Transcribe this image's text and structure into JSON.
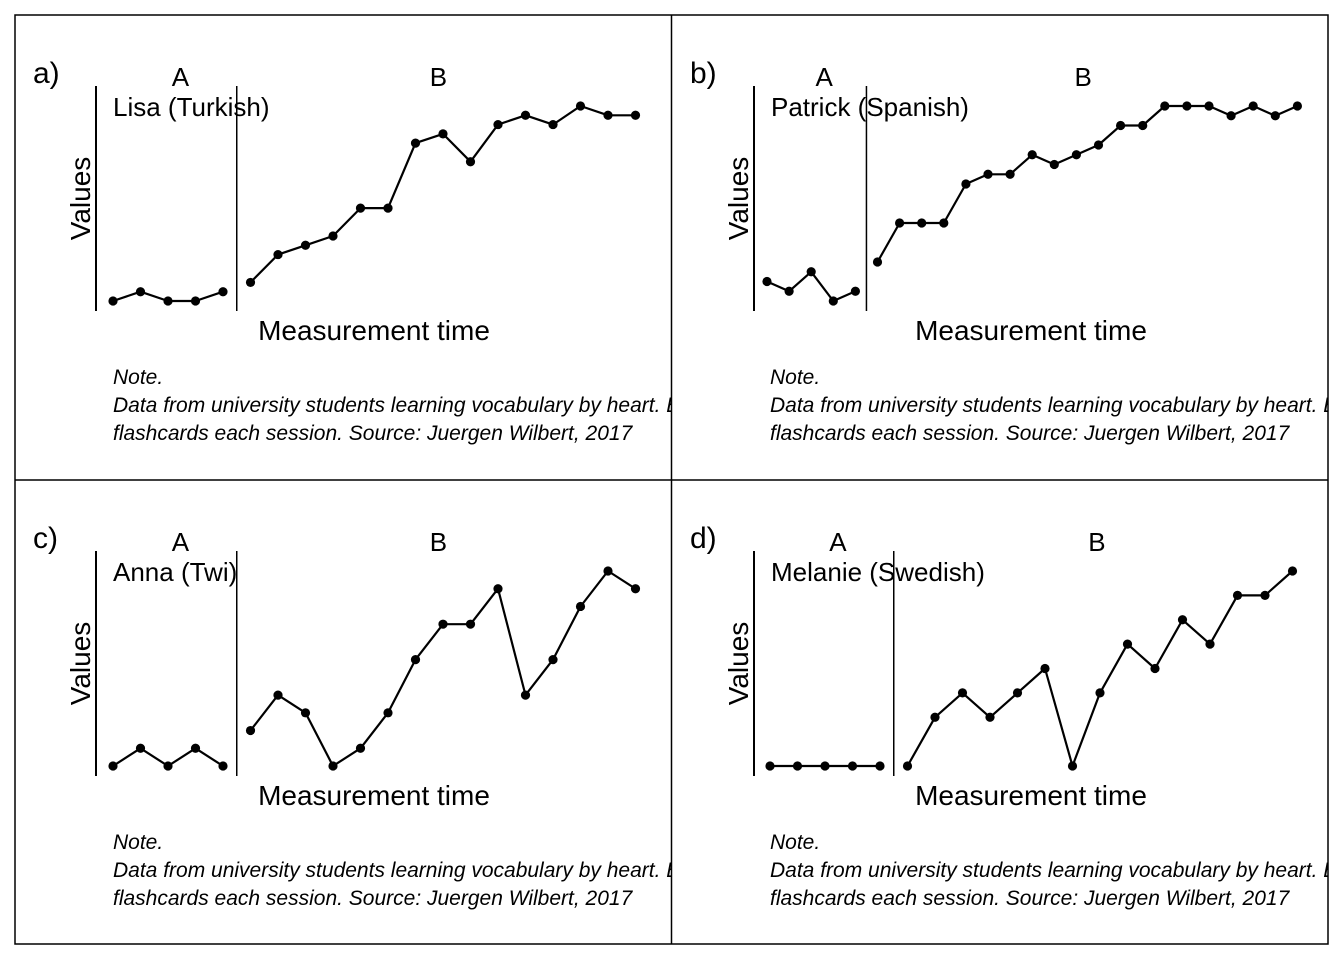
{
  "figure": {
    "note_label": "Note.",
    "note_line1": "Data from university students learning vocabulary by heart. Each session with ten",
    "note_line2": "flashcards each session. Source: Juergen Wilbert, 2017"
  },
  "chart_data": [
    {
      "type": "line",
      "panel_label": "a)",
      "title": "Lisa (Turkish)",
      "xlabel": "Measurement time",
      "ylabel": "Values",
      "phases": [
        {
          "label": "A",
          "values": [
            0,
            1,
            0,
            0,
            1
          ]
        },
        {
          "label": "B",
          "values": [
            2,
            5,
            6,
            7,
            10,
            10,
            17,
            18,
            15,
            19,
            20,
            19,
            21,
            20,
            20
          ]
        }
      ],
      "ylim": [
        0,
        21
      ]
    },
    {
      "type": "line",
      "panel_label": "b)",
      "title": "Patrick (Spanish)",
      "xlabel": "Measurement time",
      "ylabel": "Values",
      "phases": [
        {
          "label": "A",
          "values": [
            2,
            1,
            3,
            0,
            1
          ]
        },
        {
          "label": "B",
          "values": [
            4,
            8,
            8,
            8,
            12,
            13,
            13,
            15,
            14,
            15,
            16,
            18,
            18,
            20,
            20,
            20,
            19,
            20,
            19,
            20
          ]
        }
      ],
      "ylim": [
        0,
        20
      ]
    },
    {
      "type": "line",
      "panel_label": "c)",
      "title": "Anna (Twi)",
      "xlabel": "Measurement time",
      "ylabel": "Values",
      "phases": [
        {
          "label": "A",
          "values": [
            0,
            1,
            0,
            1,
            0
          ]
        },
        {
          "label": "B",
          "values": [
            2,
            4,
            3,
            0,
            1,
            3,
            6,
            8,
            8,
            10,
            4,
            6,
            9,
            11,
            10
          ]
        }
      ],
      "ylim": [
        0,
        11
      ]
    },
    {
      "type": "line",
      "panel_label": "d)",
      "title": "Melanie (Swedish)",
      "xlabel": "Measurement time",
      "ylabel": "Values",
      "phases": [
        {
          "label": "A",
          "values": [
            0,
            0,
            0,
            0,
            0
          ]
        },
        {
          "label": "B",
          "values": [
            0,
            4,
            6,
            4,
            6,
            8,
            0,
            6,
            10,
            8,
            12,
            10,
            14,
            14,
            16
          ]
        }
      ],
      "ylim": [
        0,
        16
      ]
    }
  ]
}
